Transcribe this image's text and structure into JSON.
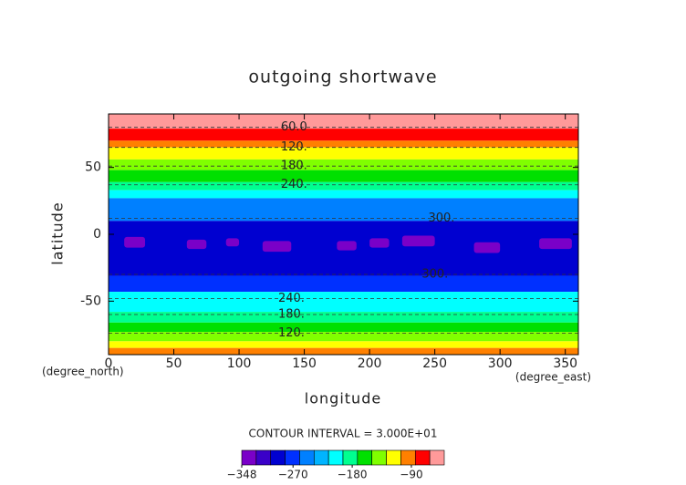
{
  "chart_data": {
    "type": "contour",
    "title": "outgoing shortwave",
    "xlabel": "longitude",
    "ylabel": "latitude",
    "xunit": "(degree_east)",
    "yunit": "(degree_north)",
    "note": "CONTOUR INTERVAL = 3.000E+01",
    "xlim": [
      0,
      360
    ],
    "ylim": [
      -90,
      90
    ],
    "xticks": [
      0,
      50,
      100,
      150,
      200,
      250,
      300,
      350
    ],
    "yticks": [
      -50,
      0,
      50
    ],
    "bands": [
      {
        "lat": [
          79,
          90
        ],
        "value": -51
      },
      {
        "lat": [
          70,
          79
        ],
        "value": -73
      },
      {
        "lat": [
          65,
          70
        ],
        "value": -95
      },
      {
        "lat": [
          56,
          65
        ],
        "value": -117
      },
      {
        "lat": [
          48,
          56
        ],
        "value": -139
      },
      {
        "lat": [
          39,
          48
        ],
        "value": -161
      },
      {
        "lat": [
          33,
          39
        ],
        "value": -183
      },
      {
        "lat": [
          27,
          33
        ],
        "value": -205
      },
      {
        "lat": [
          10,
          27
        ],
        "value": -249
      },
      {
        "lat": [
          -31,
          10
        ],
        "value": -293
      },
      {
        "lat": [
          -43,
          -31
        ],
        "value": -271
      },
      {
        "lat": [
          -58,
          -43
        ],
        "value": -205
      },
      {
        "lat": [
          -66,
          -58
        ],
        "value": -183
      },
      {
        "lat": [
          -73,
          -66
        ],
        "value": -161
      },
      {
        "lat": [
          -80,
          -73
        ],
        "value": -139
      },
      {
        "lat": [
          -85,
          -80
        ],
        "value": -117
      },
      {
        "lat": [
          -90,
          -85
        ],
        "value": -95
      }
    ],
    "patches": [
      {
        "lon": [
          12,
          28
        ],
        "lat": [
          -10,
          -2
        ],
        "value": -337
      },
      {
        "lon": [
          60,
          75
        ],
        "lat": [
          -11,
          -4
        ],
        "value": -337
      },
      {
        "lon": [
          90,
          100
        ],
        "lat": [
          -9,
          -3
        ],
        "value": -337
      },
      {
        "lon": [
          118,
          140
        ],
        "lat": [
          -13,
          -5
        ],
        "value": -337
      },
      {
        "lon": [
          175,
          190
        ],
        "lat": [
          -12,
          -5
        ],
        "value": -337
      },
      {
        "lon": [
          200,
          215
        ],
        "lat": [
          -10,
          -3
        ],
        "value": -337
      },
      {
        "lon": [
          225,
          250
        ],
        "lat": [
          -9,
          -1
        ],
        "value": -337
      },
      {
        "lon": [
          280,
          300
        ],
        "lat": [
          -14,
          -6
        ],
        "value": -337
      },
      {
        "lon": [
          330,
          355
        ],
        "lat": [
          -11,
          -3
        ],
        "value": -337
      }
    ],
    "contour_labels": [
      {
        "text": "60.0",
        "lon": 132,
        "lat": 80
      },
      {
        "text": "120.",
        "lon": 132,
        "lat": 65
      },
      {
        "text": "180.",
        "lon": 132,
        "lat": 51
      },
      {
        "text": "240.",
        "lon": 132,
        "lat": 37
      },
      {
        "text": "300.",
        "lon": 245,
        "lat": 12
      },
      {
        "text": "300.",
        "lon": 240,
        "lat": -30
      },
      {
        "text": "240.",
        "lon": 130,
        "lat": -48
      },
      {
        "text": "180.",
        "lon": 130,
        "lat": -60
      },
      {
        "text": "120.",
        "lon": 130,
        "lat": -74
      }
    ],
    "colorbar": {
      "lim": [
        -348,
        -40
      ],
      "colors": [
        "#7a00c8",
        "#3a00c8",
        "#0000d0",
        "#0030ff",
        "#0080ff",
        "#00b4ff",
        "#00ffff",
        "#00ff90",
        "#00e000",
        "#80ff00",
        "#ffff00",
        "#ff8000",
        "#ff0000",
        "#ff9a9a"
      ],
      "ticks": [
        {
          "value": -348,
          "label": "−348"
        },
        {
          "value": -270,
          "label": "−270"
        },
        {
          "value": -180,
          "label": "−180"
        },
        {
          "value": -90,
          "label": "−90"
        }
      ]
    }
  }
}
